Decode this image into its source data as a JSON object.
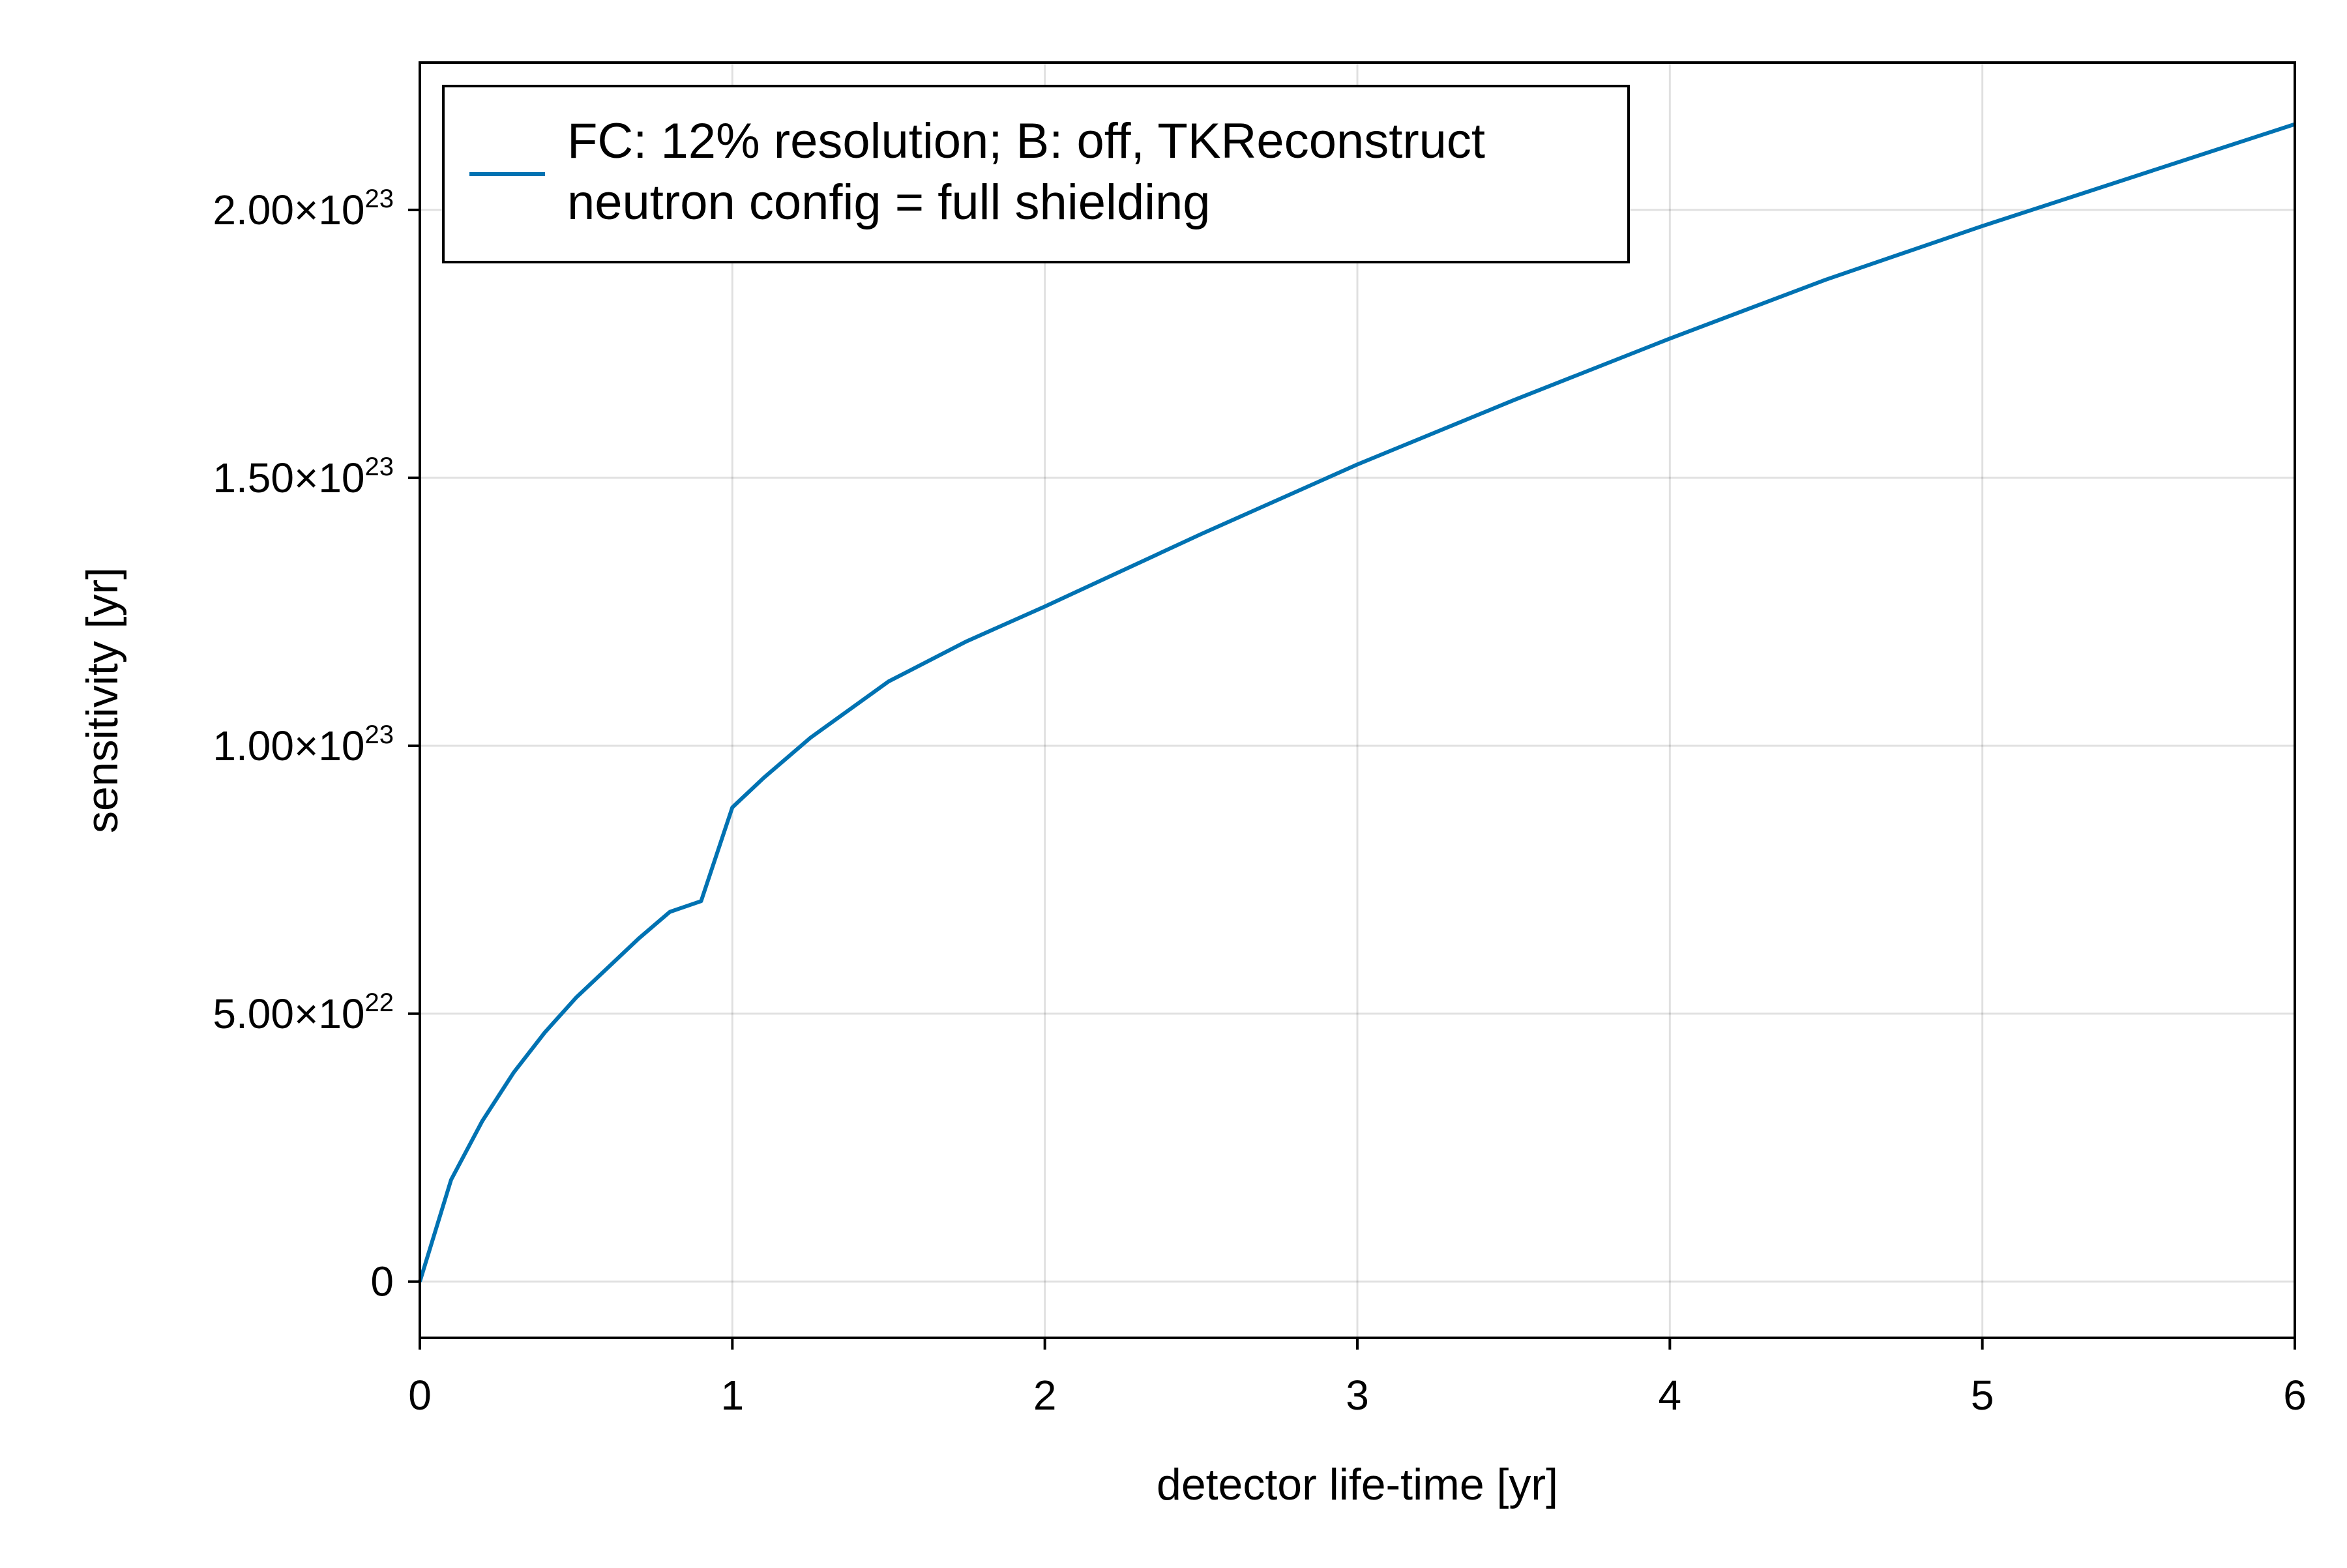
{
  "chart_data": {
    "type": "line",
    "title": "",
    "xlabel": "detector life-time [yr]",
    "ylabel": "sensitivity [yr]",
    "xlim": [
      0,
      6
    ],
    "ylim": [
      -1.05e+22,
      2.275e+23
    ],
    "x_ticks": [
      {
        "value": 0,
        "label": "0"
      },
      {
        "value": 1,
        "label": "1"
      },
      {
        "value": 2,
        "label": "2"
      },
      {
        "value": 3,
        "label": "3"
      },
      {
        "value": 4,
        "label": "4"
      },
      {
        "value": 5,
        "label": "5"
      },
      {
        "value": 6,
        "label": "6"
      }
    ],
    "y_ticks": [
      {
        "value": 0,
        "mantissa": "0",
        "exponent": ""
      },
      {
        "value": 5e+22,
        "mantissa": "5.00×10",
        "exponent": "22"
      },
      {
        "value": 1e+23,
        "mantissa": "1.00×10",
        "exponent": "23"
      },
      {
        "value": 1.5e+23,
        "mantissa": "1.50×10",
        "exponent": "23"
      },
      {
        "value": 2e+23,
        "mantissa": "2.00×10",
        "exponent": "23"
      }
    ],
    "grid": true,
    "legend_position": "top-left",
    "series": [
      {
        "name": "FC: 12% resolution; B: off, TKReconstruct\nneutron config = full shielding",
        "legend_lines": [
          "FC: 12% resolution; B: off, TKReconstruct",
          "neutron config = full shielding"
        ],
        "color": "#0072b2",
        "x": [
          0,
          0.1,
          0.2,
          0.3,
          0.4,
          0.5,
          0.6,
          0.7,
          0.8,
          0.9,
          1.0,
          1.1,
          1.25,
          1.5,
          1.75,
          2.0,
          2.5,
          3.0,
          3.5,
          4.0,
          4.5,
          5.0,
          5.5,
          6.0
        ],
        "y": [
          0,
          1.9e+22,
          3e+22,
          3.9e+22,
          4.65e+22,
          5.3e+22,
          5.85e+22,
          6.4e+22,
          6.9e+22,
          7.1e+22,
          8.85e+22,
          9.4e+22,
          1.015e+23,
          1.12e+23,
          1.195e+23,
          1.26e+23,
          1.395e+23,
          1.525e+23,
          1.645e+23,
          1.76e+23,
          1.87e+23,
          1.97e+23,
          2.065e+23,
          2.16e+23
        ]
      }
    ]
  }
}
